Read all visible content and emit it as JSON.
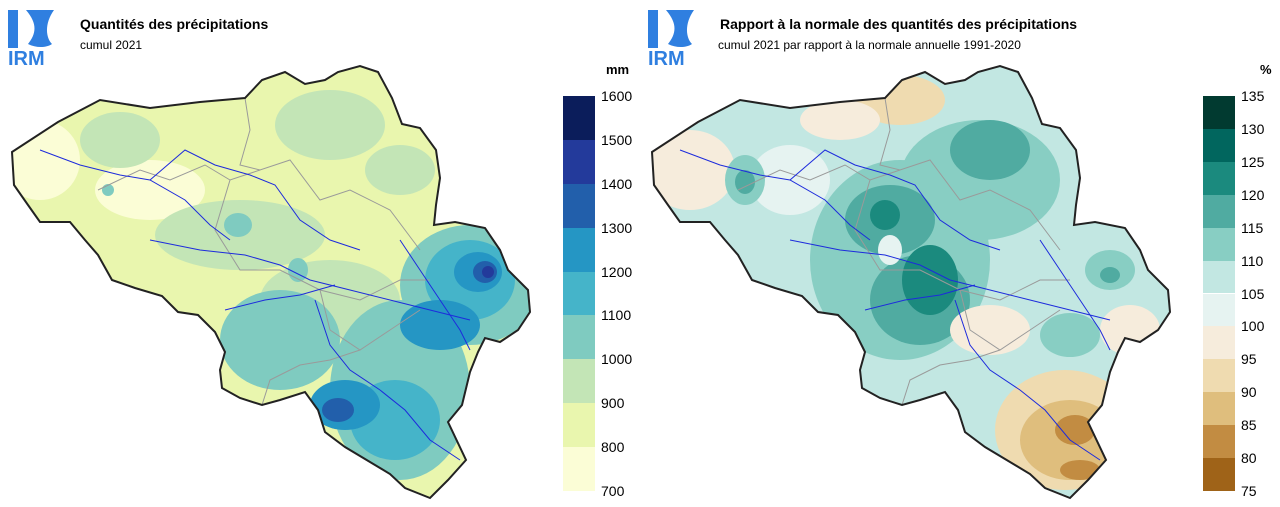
{
  "left": {
    "title": "Quantités des précipitations",
    "subtitle": "cumul 2021",
    "unit": "mm",
    "logo_text": "IRM",
    "legend": {
      "ticks": [
        "1600",
        "1500",
        "1400",
        "1300",
        "1200",
        "1100",
        "1000",
        "900",
        "800",
        "700"
      ],
      "colors": [
        "#0b1d5b",
        "#233a9b",
        "#225fab",
        "#2596c4",
        "#45b4c9",
        "#7fcbc0",
        "#c3e5b6",
        "#e9f6ae",
        "#fbfdd6"
      ]
    }
  },
  "right": {
    "title": "Rapport à la normale des quantités des précipitations",
    "subtitle": "cumul 2021 par rapport à la normale annuelle 1991-2020",
    "unit": "%",
    "logo_text": "IRM",
    "legend": {
      "ticks": [
        "135",
        "130",
        "125",
        "120",
        "115",
        "110",
        "105",
        "100",
        "95",
        "90",
        "85",
        "80",
        "75"
      ],
      "colors": [
        "#013a30",
        "#01665e",
        "#1b8a7e",
        "#50aba1",
        "#88cec3",
        "#c2e7e2",
        "#e6f3f1",
        "#f6ecdc",
        "#efdbb0",
        "#dfbe7d",
        "#c28c42",
        "#9f6318"
      ]
    }
  },
  "colors": {
    "logo_blue": "#2f7fe0",
    "border": "#222222",
    "rivers": "#1d2bdc",
    "provinces": "#9a9a9a"
  }
}
